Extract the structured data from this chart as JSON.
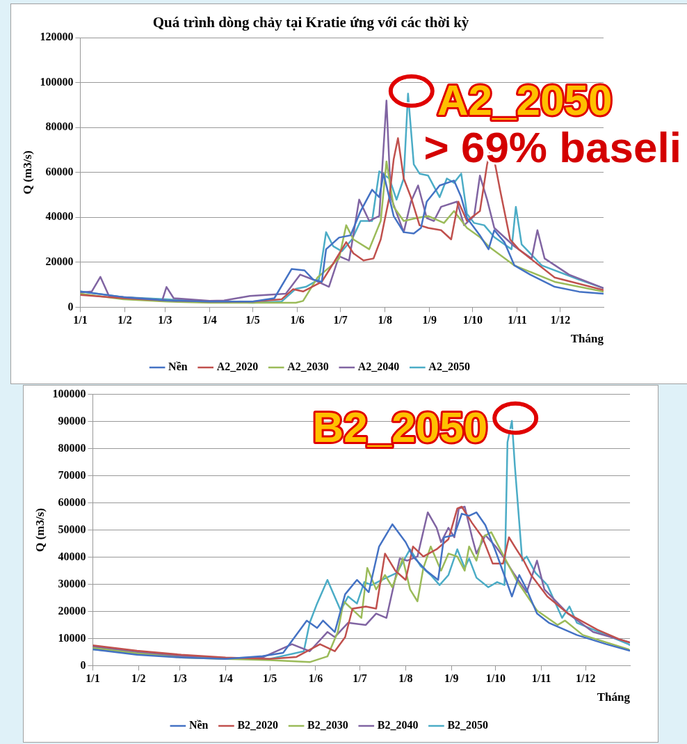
{
  "chart_data": [
    {
      "type": "line",
      "title": "Quá trình dòng chảy tại Kratie ứng với các thời kỳ",
      "xlabel": "Tháng",
      "ylabel": "Q (m3/s)",
      "xlim": [
        "--01-01",
        "--12-31"
      ],
      "xticks": [
        {
          "value": "--01-01",
          "label": "1/1"
        },
        {
          "value": "--02-01",
          "label": "1/2"
        },
        {
          "value": "--03-01",
          "label": "1/3"
        },
        {
          "value": "--04-01",
          "label": "1/4"
        },
        {
          "value": "--05-01",
          "label": "1/5"
        },
        {
          "value": "--06-01",
          "label": "1/6"
        },
        {
          "value": "--07-01",
          "label": "1/7"
        },
        {
          "value": "--08-01",
          "label": "1/8"
        },
        {
          "value": "--09-01",
          "label": "1/9"
        },
        {
          "value": "--10-01",
          "label": "1/10"
        },
        {
          "value": "--11-01",
          "label": "1/11"
        },
        {
          "value": "--12-01",
          "label": "1/12"
        }
      ],
      "ylim": [
        0,
        120000
      ],
      "yticks": [
        0,
        20000,
        40000,
        60000,
        80000,
        100000,
        120000
      ],
      "grid": "y",
      "legend": "bottom",
      "annotations": [
        {
          "text": "A2_2050",
          "x": "--08-17",
          "y": 95000
        },
        "> 69% baseli"
      ],
      "series": [
        {
          "name": "Nền",
          "color": "#4472c4",
          "x": [
            "--01-01",
            "--01-31",
            "--03-02",
            "--04-01",
            "--05-01",
            "--05-16",
            "--05-28",
            "--06-06",
            "--06-12",
            "--06-18",
            "--06-21",
            "--06-30",
            "--07-08",
            "--07-15",
            "--07-23",
            "--07-28",
            "--07-31",
            "--08-07",
            "--08-14",
            "--08-21",
            "--08-26",
            "--08-30",
            "--09-08",
            "--09-18",
            "--09-23",
            "--09-27",
            "--10-06",
            "--10-12",
            "--10-16",
            "--10-23",
            "--10-30",
            "--11-10",
            "--11-27",
            "--12-14",
            "--12-31"
          ],
          "values": [
            7000,
            4500,
            3000,
            2500,
            2500,
            4000,
            17000,
            16400,
            12300,
            11300,
            25800,
            31000,
            32000,
            42800,
            52300,
            49000,
            59500,
            40600,
            33400,
            32800,
            35300,
            47000,
            54200,
            56400,
            49000,
            39700,
            32000,
            25800,
            34300,
            29000,
            18600,
            14500,
            9100,
            6900,
            6000
          ]
        },
        {
          "name": "A2_2020",
          "color": "#c0504d",
          "x": [
            "--01-01",
            "--01-31",
            "--03-02",
            "--04-01",
            "--05-01",
            "--05-21",
            "--05-29",
            "--06-05",
            "--06-18",
            "--06-26",
            "--07-05",
            "--07-10",
            "--07-17",
            "--07-24",
            "--07-29",
            "--08-04",
            "--08-07",
            "--08-10",
            "--08-14",
            "--08-19",
            "--08-25",
            "--08-31",
            "--09-09",
            "--09-16",
            "--09-21",
            "--09-27",
            "--10-06",
            "--10-11",
            "--10-14",
            "--10-20",
            "--10-27",
            "--11-02",
            "--11-27",
            "--12-31"
          ],
          "values": [
            5500,
            4000,
            3000,
            2500,
            2500,
            3500,
            8000,
            7000,
            11300,
            19500,
            29000,
            24000,
            20800,
            21700,
            30200,
            49000,
            65800,
            75300,
            57300,
            49000,
            36500,
            35300,
            34300,
            30200,
            47000,
            38400,
            42800,
            63600,
            72100,
            52300,
            30200,
            25800,
            13200,
            7600
          ]
        },
        {
          "name": "A2_2030",
          "color": "#9bbb59",
          "x": [
            "--01-01",
            "--01-31",
            "--03-02",
            "--04-01",
            "--05-01",
            "--05-31",
            "--06-05",
            "--06-15",
            "--06-23",
            "--06-30",
            "--07-05",
            "--07-10",
            "--07-21",
            "--07-29",
            "--08-02",
            "--08-07",
            "--08-14",
            "--08-23",
            "--08-31",
            "--09-11",
            "--09-18",
            "--09-27",
            "--10-06",
            "--10-12",
            "--10-30",
            "--11-27",
            "--12-31"
          ],
          "values": [
            6000,
            3500,
            2500,
            2000,
            2000,
            2000,
            2800,
            13200,
            17600,
            21700,
            36500,
            30200,
            25800,
            38400,
            64900,
            44700,
            38400,
            39700,
            40600,
            37500,
            42800,
            35300,
            31200,
            27100,
            18600,
            11300,
            6900
          ]
        },
        {
          "name": "A2_2040",
          "color": "#8064a2",
          "x": [
            "--01-01",
            "--01-09",
            "--01-15",
            "--01-21",
            "--02-20",
            "--02-27",
            "--03-02",
            "--03-07",
            "--04-01",
            "--04-11",
            "--04-29",
            "--05-24",
            "--06-03",
            "--06-12",
            "--06-23",
            "--06-30",
            "--07-07",
            "--07-14",
            "--07-21",
            "--07-28",
            "--08-02",
            "--08-05",
            "--08-14",
            "--08-19",
            "--08-24",
            "--08-30",
            "--09-04",
            "--09-09",
            "--09-20",
            "--09-25",
            "--10-02",
            "--10-06",
            "--10-11",
            "--10-16",
            "--10-30",
            "--11-11",
            "--11-15",
            "--11-20",
            "--12-07",
            "--12-31"
          ],
          "values": [
            6500,
            7000,
            13500,
            5000,
            3500,
            3000,
            9000,
            4000,
            2800,
            3000,
            5000,
            6000,
            14500,
            12300,
            9100,
            22700,
            20800,
            47900,
            38400,
            40600,
            92000,
            49000,
            33400,
            47000,
            54200,
            39700,
            38400,
            44700,
            47000,
            36500,
            40600,
            58600,
            47900,
            35300,
            27100,
            21700,
            34300,
            21700,
            14500,
            8500
          ]
        },
        {
          "name": "A2_2050",
          "color": "#4bacc6",
          "x": [
            "--01-01",
            "--01-31",
            "--03-02",
            "--04-01",
            "--05-01",
            "--05-21",
            "--05-31",
            "--06-07",
            "--06-16",
            "--06-21",
            "--06-26",
            "--07-02",
            "--07-09",
            "--07-15",
            "--07-23",
            "--07-28",
            "--08-04",
            "--08-09",
            "--08-14",
            "--08-17",
            "--08-21",
            "--08-25",
            "--08-31",
            "--09-08",
            "--09-13",
            "--09-18",
            "--09-23",
            "--09-27",
            "--10-02",
            "--10-09",
            "--10-16",
            "--10-23",
            "--10-28",
            "--10-31",
            "--11-04",
            "--11-18",
            "--12-14",
            "--12-31"
          ],
          "values": [
            7000,
            4500,
            3500,
            2500,
            2000,
            2500,
            8200,
            9100,
            12300,
            33400,
            27100,
            24900,
            30200,
            38400,
            38400,
            60500,
            57300,
            47900,
            57300,
            95100,
            63600,
            59500,
            58600,
            49000,
            57300,
            55400,
            59500,
            41600,
            37500,
            36500,
            31200,
            28000,
            25800,
            44700,
            28000,
            18600,
            12300,
            8500
          ]
        }
      ]
    },
    {
      "type": "line",
      "xlabel": "Tháng",
      "ylabel": "Q (m3/s)",
      "xlim": [
        "--01-01",
        "--12-31"
      ],
      "xticks": [
        {
          "value": "--01-01",
          "label": "1/1"
        },
        {
          "value": "--02-01",
          "label": "1/2"
        },
        {
          "value": "--03-01",
          "label": "1/3"
        },
        {
          "value": "--04-01",
          "label": "1/4"
        },
        {
          "value": "--05-01",
          "label": "1/5"
        },
        {
          "value": "--06-01",
          "label": "1/6"
        },
        {
          "value": "--07-01",
          "label": "1/7"
        },
        {
          "value": "--08-01",
          "label": "1/8"
        },
        {
          "value": "--09-01",
          "label": "1/9"
        },
        {
          "value": "--10-01",
          "label": "1/10"
        },
        {
          "value": "--11-01",
          "label": "1/11"
        },
        {
          "value": "--12-01",
          "label": "1/12"
        }
      ],
      "ylim": [
        0,
        100000
      ],
      "yticks": [
        0,
        10000,
        20000,
        30000,
        40000,
        50000,
        60000,
        70000,
        80000,
        90000,
        100000
      ],
      "grid": "y",
      "legend": "bottom",
      "annotations": [
        {
          "text": "B2_2050",
          "x": "--10-12",
          "y": 90200
        }
      ],
      "series": [
        {
          "name": "Nền",
          "color": "#4472c4",
          "x": [
            "--01-01",
            "--01-31",
            "--03-02",
            "--04-01",
            "--04-26",
            "--05-10",
            "--05-26",
            "--06-02",
            "--06-06",
            "--06-14",
            "--06-21",
            "--06-29",
            "--07-07",
            "--07-14",
            "--07-23",
            "--08-01",
            "--08-06",
            "--08-15",
            "--08-23",
            "--08-27",
            "--09-03",
            "--09-08",
            "--09-13",
            "--09-18",
            "--09-24",
            "--10-01",
            "--10-08",
            "--10-12",
            "--10-17",
            "--10-22",
            "--10-29",
            "--11-06",
            "--11-25",
            "--12-15",
            "--12-31"
          ],
          "values": [
            6000,
            4000,
            3000,
            2500,
            3500,
            4700,
            16600,
            13900,
            16600,
            12400,
            26300,
            31600,
            27100,
            43900,
            52100,
            45500,
            40200,
            35000,
            31600,
            47300,
            48100,
            56000,
            55200,
            56500,
            51800,
            42100,
            31600,
            25500,
            33400,
            28100,
            19200,
            15800,
            11300,
            7900,
            5500
          ]
        },
        {
          "name": "B2_2020",
          "color": "#c0504d",
          "x": [
            "--01-01",
            "--01-31",
            "--03-02",
            "--04-01",
            "--05-01",
            "--05-19",
            "--06-04",
            "--06-14",
            "--06-21",
            "--06-26",
            "--07-05",
            "--07-12",
            "--07-18",
            "--07-25",
            "--08-01",
            "--08-06",
            "--08-13",
            "--08-22",
            "--08-30",
            "--09-05",
            "--09-08",
            "--09-15",
            "--09-22",
            "--09-29",
            "--10-06",
            "--10-10",
            "--10-15",
            "--10-20",
            "--10-25",
            "--11-05",
            "--11-19",
            "--12-09",
            "--12-24",
            "--12-31"
          ],
          "values": [
            7500,
            5500,
            4000,
            3000,
            2500,
            3200,
            7900,
            5300,
            10500,
            21000,
            21800,
            21000,
            41300,
            35000,
            31600,
            43900,
            40200,
            42900,
            46600,
            57900,
            58600,
            52600,
            47300,
            37600,
            37600,
            47300,
            42900,
            38700,
            33400,
            25500,
            19200,
            13200,
            9700,
            8500
          ]
        },
        {
          "name": "B2_2030",
          "color": "#9bbb59",
          "x": [
            "--01-01",
            "--01-31",
            "--03-02",
            "--04-01",
            "--05-01",
            "--05-28",
            "--06-09",
            "--06-16",
            "--06-20",
            "--07-02",
            "--07-06",
            "--07-12",
            "--07-18",
            "--07-23",
            "--07-30",
            "--08-04",
            "--08-09",
            "--08-13",
            "--08-18",
            "--08-25",
            "--08-30",
            "--09-05",
            "--09-10",
            "--09-13",
            "--09-18",
            "--09-22",
            "--09-28",
            "--10-04",
            "--10-15",
            "--10-29",
            "--11-12",
            "--11-17",
            "--11-29",
            "--12-30",
            "--12-31"
          ],
          "values": [
            6500,
            4500,
            3000,
            2500,
            2000,
            1300,
            3400,
            12400,
            23700,
            17600,
            36000,
            28100,
            33400,
            28900,
            39500,
            28100,
            23700,
            36000,
            43900,
            35000,
            41300,
            40200,
            35000,
            43900,
            38700,
            47300,
            49200,
            42900,
            31600,
            20300,
            15000,
            16600,
            11300,
            6000,
            5500
          ]
        },
        {
          "name": "B2_2040",
          "color": "#8064a2",
          "x": [
            "--01-01",
            "--01-31",
            "--03-02",
            "--04-01",
            "--04-26",
            "--05-16",
            "--05-28",
            "--06-09",
            "--06-14",
            "--06-23",
            "--07-05",
            "--07-12",
            "--07-19",
            "--07-28",
            "--08-02",
            "--08-09",
            "--08-16",
            "--08-22",
            "--08-25",
            "--08-30",
            "--09-03",
            "--09-06",
            "--09-10",
            "--09-15",
            "--09-18",
            "--09-24",
            "--10-01",
            "--10-06",
            "--10-13",
            "--10-22",
            "--10-29",
            "--11-03",
            "--11-19",
            "--12-06",
            "--12-30",
            "--12-31"
          ],
          "values": [
            7000,
            5000,
            3500,
            2800,
            3000,
            7900,
            5300,
            12400,
            10500,
            15800,
            15000,
            19200,
            17600,
            39500,
            38700,
            40200,
            56500,
            50800,
            45500,
            50800,
            47300,
            57900,
            58600,
            47300,
            41300,
            48100,
            43900,
            40200,
            34200,
            27100,
            38700,
            28100,
            19200,
            12400,
            8700,
            8500
          ]
        },
        {
          "name": "B2_2050",
          "color": "#4bacc6",
          "x": [
            "--01-01",
            "--01-31",
            "--03-02",
            "--04-01",
            "--05-01",
            "--05-24",
            "--05-28",
            "--06-02",
            "--06-09",
            "--06-18",
            "--06-23",
            "--06-29",
            "--07-04",
            "--07-09",
            "--07-16",
            "--07-26",
            "--08-04",
            "--08-11",
            "--08-18",
            "--08-24",
            "--08-30",
            "--09-05",
            "--09-10",
            "--09-13",
            "--09-18",
            "--09-26",
            "--10-02",
            "--10-07",
            "--10-09",
            "--10-12",
            "--10-14",
            "--10-19",
            "--10-22",
            "--10-28",
            "--11-05",
            "--11-15",
            "--11-20",
            "--11-25",
            "--12-30",
            "--12-31"
          ],
          "values": [
            6000,
            4500,
            3500,
            2500,
            2500,
            5300,
            15800,
            22900,
            31600,
            20300,
            25500,
            22900,
            30800,
            29700,
            31600,
            34200,
            42900,
            36800,
            33400,
            29700,
            33400,
            42900,
            36000,
            39500,
            32400,
            28900,
            30800,
            29700,
            82300,
            90200,
            73600,
            38700,
            40200,
            34200,
            29700,
            17600,
            21800,
            15800,
            7900,
            7500
          ]
        }
      ]
    }
  ]
}
